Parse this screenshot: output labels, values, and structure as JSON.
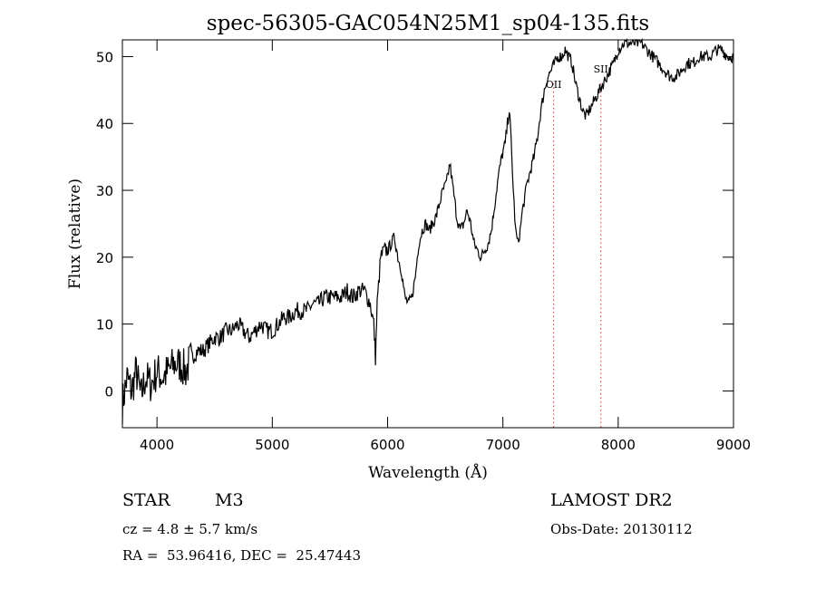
{
  "colors": {
    "axis": "#000000",
    "spectrum": "#000000",
    "line_marker": "#e03030",
    "background": "#ffffff"
  },
  "info": {
    "object_class": "STAR",
    "subclass": "M3",
    "cz": "cz = 4.8 ± 5.7 km/s",
    "coords": "RA =  53.96416, DEC =  25.47443",
    "survey": "LAMOST DR2",
    "obs_date": "Obs-Date: 20130112"
  },
  "chart_data": {
    "type": "line",
    "title": "spec-56305-GAC054N25M1_sp04-135.fits",
    "xlabel": "Wavelength (Å)",
    "ylabel": "Flux (relative)",
    "xlim": [
      3700,
      9000
    ],
    "ylim": [
      -5.5,
      52.5
    ],
    "x_ticks": [
      4000,
      5000,
      6000,
      7000,
      8000,
      9000
    ],
    "y_ticks": [
      0,
      10,
      20,
      30,
      40,
      50
    ],
    "grid": false,
    "legend": "none",
    "series": [
      {
        "x": [
          3700,
          3740,
          3780,
          3820,
          3860,
          3900,
          3950,
          4000,
          4050,
          4100,
          4150,
          4200,
          4250,
          4300,
          4350,
          4400,
          4450,
          4500,
          4550,
          4600,
          4650,
          4700,
          4750,
          4800,
          4850,
          4900,
          4950,
          5000,
          5050,
          5100,
          5150,
          5200,
          5250,
          5300,
          5350,
          5400,
          5450,
          5500,
          5550,
          5600,
          5650,
          5700,
          5750,
          5800,
          5850,
          5880,
          5895,
          5910,
          5940,
          5970,
          6000,
          6030,
          6060,
          6090,
          6120,
          6150,
          6180,
          6210,
          6240,
          6270,
          6300,
          6330,
          6360,
          6390,
          6420,
          6450,
          6480,
          6510,
          6540,
          6570,
          6600,
          6630,
          6660,
          6690,
          6720,
          6750,
          6780,
          6810,
          6840,
          6870,
          6900,
          6930,
          6960,
          6990,
          7020,
          7040,
          7055,
          7070,
          7090,
          7110,
          7130,
          7150,
          7170,
          7190,
          7210,
          7240,
          7270,
          7300,
          7330,
          7360,
          7390,
          7420,
          7450,
          7480,
          7510,
          7540,
          7570,
          7600,
          7630,
          7660,
          7690,
          7720,
          7750,
          7780,
          7810,
          7840,
          7870,
          7900,
          7930,
          7960,
          8000,
          8050,
          8100,
          8150,
          8200,
          8250,
          8300,
          8350,
          8400,
          8450,
          8500,
          8550,
          8600,
          8650,
          8700,
          8750,
          8800,
          8850,
          8900,
          8950,
          9000
        ],
        "y": [
          -2,
          2,
          0,
          3,
          -1,
          2,
          1,
          3,
          2,
          3,
          4,
          4,
          3,
          5,
          6,
          6,
          7,
          8,
          8,
          9,
          9,
          10,
          9,
          8,
          9,
          10,
          9,
          9,
          10,
          11,
          11,
          12,
          12,
          12,
          13,
          13,
          14,
          14,
          14,
          14,
          15,
          14,
          15,
          15,
          13,
          10,
          5,
          13,
          20,
          21,
          21,
          22,
          23,
          20,
          18,
          14,
          13,
          14,
          17,
          22,
          24,
          25,
          24,
          25,
          26,
          28,
          30,
          31,
          34,
          30,
          26,
          24,
          25,
          27,
          25,
          22,
          21,
          20,
          21,
          22,
          24,
          28,
          32,
          35,
          37,
          40,
          42,
          38,
          30,
          24,
          22,
          24,
          27,
          29,
          31,
          33,
          35,
          38,
          42,
          45,
          47,
          48,
          49,
          50,
          50,
          51,
          50,
          49,
          46,
          44,
          42,
          41,
          42,
          43,
          44,
          45,
          46,
          47,
          48,
          49,
          51,
          52,
          52,
          52,
          52,
          51,
          50,
          49,
          48,
          47,
          47,
          48,
          49,
          49,
          50,
          50,
          50,
          51,
          51,
          50,
          50
        ]
      }
    ],
    "annotations": [
      {
        "label": "OII",
        "x": 7440
      },
      {
        "label": "SII",
        "x": 7850
      }
    ]
  }
}
